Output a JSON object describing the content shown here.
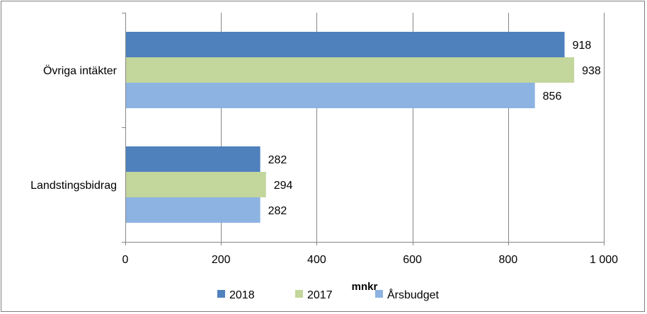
{
  "chart_data": {
    "type": "bar",
    "orientation": "horizontal",
    "title": "",
    "xlabel": "mnkr",
    "ylabel": "",
    "categories": [
      "Övriga intäkter",
      "Landstingsbidrag"
    ],
    "series": [
      {
        "name": "2018",
        "values": [
          918,
          282
        ],
        "color": "#4f81bd"
      },
      {
        "name": "2017",
        "values": [
          938,
          294
        ],
        "color": "#c3d69b"
      },
      {
        "name": "Årsbudget",
        "values": [
          856,
          282
        ],
        "color": "#8db3e2"
      }
    ],
    "xlim": [
      0,
      1000
    ],
    "xticks": [
      {
        "value": 0,
        "label": "0"
      },
      {
        "value": 200,
        "label": "200"
      },
      {
        "value": 400,
        "label": "400"
      },
      {
        "value": 600,
        "label": "600"
      },
      {
        "value": 800,
        "label": "800"
      },
      {
        "value": 1000,
        "label": "1 000"
      }
    ],
    "grid": true,
    "legend_position": "bottom"
  }
}
